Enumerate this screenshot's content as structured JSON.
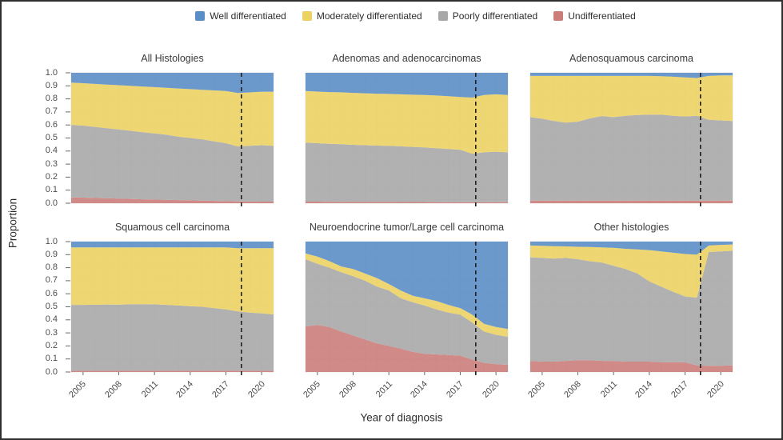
{
  "chart_data": {
    "type": "area",
    "stacked": true,
    "xlabel": "Year of diagnosis",
    "ylabel": "Proportion",
    "x_range": [
      2004,
      2021
    ],
    "ylim": [
      0,
      1
    ],
    "x": [
      2004,
      2005,
      2006,
      2007,
      2008,
      2009,
      2010,
      2011,
      2012,
      2013,
      2014,
      2015,
      2016,
      2017,
      2018,
      2019,
      2020,
      2021
    ],
    "x_ticks": [
      2005,
      2008,
      2011,
      2014,
      2017,
      2020
    ],
    "y_ticks": [
      "0.0",
      "0.1",
      "0.2",
      "0.3",
      "0.4",
      "0.5",
      "0.6",
      "0.7",
      "0.8",
      "0.9",
      "1.0"
    ],
    "reference_line_x": 2018.3,
    "reference_line_style": "dashed",
    "grid": true,
    "legend_position": "top",
    "colors": {
      "well_differentiated": "#5b8ec6",
      "moderately_differentiated": "#ecd163",
      "poorly_differentiated": "#a8a8a8",
      "undifferentiated": "#cb7d7a",
      "reference_line": "#1f1f1f",
      "gridline": "#e7e7e7"
    },
    "legend": [
      {
        "key": "well_differentiated",
        "label": "Well differentiated"
      },
      {
        "key": "moderately_differentiated",
        "label": "Moderately differentiated"
      },
      {
        "key": "poorly_differentiated",
        "label": "Poorly differentiated"
      },
      {
        "key": "undifferentiated",
        "label": "Undifferentiated"
      }
    ],
    "stack_order": [
      "undifferentiated",
      "poorly_differentiated",
      "moderately_differentiated",
      "well_differentiated"
    ],
    "facets": [
      {
        "title": "All Histologies",
        "series": {
          "undifferentiated": [
            0.045,
            0.043,
            0.04,
            0.038,
            0.035,
            0.033,
            0.03,
            0.028,
            0.026,
            0.024,
            0.022,
            0.02,
            0.018,
            0.016,
            0.014,
            0.013,
            0.012,
            0.012
          ],
          "poorly_differentiated": [
            0.555,
            0.552,
            0.545,
            0.537,
            0.53,
            0.522,
            0.515,
            0.507,
            0.499,
            0.486,
            0.478,
            0.47,
            0.457,
            0.444,
            0.421,
            0.427,
            0.433,
            0.428
          ],
          "moderately_differentiated": [
            0.325,
            0.325,
            0.33,
            0.335,
            0.34,
            0.345,
            0.35,
            0.355,
            0.36,
            0.37,
            0.375,
            0.38,
            0.39,
            0.4,
            0.41,
            0.41,
            0.41,
            0.415
          ],
          "well_differentiated": [
            0.075,
            0.08,
            0.085,
            0.09,
            0.095,
            0.1,
            0.105,
            0.11,
            0.115,
            0.12,
            0.125,
            0.13,
            0.135,
            0.14,
            0.155,
            0.15,
            0.145,
            0.145
          ]
        }
      },
      {
        "title": "Adenomas and adenocarcinomas",
        "series": {
          "undifferentiated": [
            0.012,
            0.012,
            0.011,
            0.011,
            0.01,
            0.01,
            0.01,
            0.01,
            0.009,
            0.009,
            0.009,
            0.008,
            0.008,
            0.008,
            0.008,
            0.008,
            0.008,
            0.008
          ],
          "poorly_differentiated": [
            0.453,
            0.448,
            0.444,
            0.441,
            0.438,
            0.435,
            0.432,
            0.43,
            0.427,
            0.423,
            0.419,
            0.414,
            0.408,
            0.402,
            0.372,
            0.382,
            0.387,
            0.382
          ],
          "moderately_differentiated": [
            0.395,
            0.396,
            0.397,
            0.398,
            0.398,
            0.398,
            0.398,
            0.398,
            0.399,
            0.4,
            0.402,
            0.404,
            0.404,
            0.405,
            0.43,
            0.44,
            0.44,
            0.44
          ],
          "well_differentiated": [
            0.14,
            0.144,
            0.148,
            0.15,
            0.154,
            0.157,
            0.16,
            0.162,
            0.165,
            0.168,
            0.17,
            0.174,
            0.18,
            0.185,
            0.19,
            0.17,
            0.165,
            0.17
          ]
        }
      },
      {
        "title": "Adenosquamous carcinoma",
        "series": {
          "undifferentiated": [
            0.02,
            0.02,
            0.02,
            0.02,
            0.02,
            0.02,
            0.02,
            0.02,
            0.02,
            0.02,
            0.02,
            0.02,
            0.02,
            0.02,
            0.02,
            0.02,
            0.02,
            0.02
          ],
          "poorly_differentiated": [
            0.64,
            0.628,
            0.61,
            0.598,
            0.605,
            0.63,
            0.648,
            0.64,
            0.65,
            0.656,
            0.66,
            0.66,
            0.65,
            0.645,
            0.65,
            0.62,
            0.615,
            0.61
          ],
          "moderately_differentiated": [
            0.316,
            0.328,
            0.346,
            0.358,
            0.351,
            0.326,
            0.308,
            0.316,
            0.306,
            0.3,
            0.296,
            0.294,
            0.3,
            0.3,
            0.29,
            0.336,
            0.345,
            0.35
          ],
          "well_differentiated": [
            0.024,
            0.024,
            0.024,
            0.024,
            0.024,
            0.024,
            0.024,
            0.024,
            0.024,
            0.024,
            0.024,
            0.026,
            0.03,
            0.035,
            0.04,
            0.024,
            0.02,
            0.02
          ]
        }
      },
      {
        "title": "Squamous cell carcinoma",
        "series": {
          "undifferentiated": [
            0.01,
            0.01,
            0.01,
            0.01,
            0.01,
            0.01,
            0.01,
            0.01,
            0.01,
            0.01,
            0.01,
            0.01,
            0.01,
            0.01,
            0.01,
            0.01,
            0.01,
            0.01
          ],
          "poorly_differentiated": [
            0.505,
            0.505,
            0.506,
            0.508,
            0.506,
            0.51,
            0.51,
            0.509,
            0.505,
            0.5,
            0.495,
            0.49,
            0.48,
            0.47,
            0.455,
            0.445,
            0.44,
            0.432
          ],
          "moderately_differentiated": [
            0.44,
            0.44,
            0.439,
            0.437,
            0.439,
            0.435,
            0.435,
            0.436,
            0.44,
            0.445,
            0.45,
            0.455,
            0.465,
            0.475,
            0.485,
            0.495,
            0.5,
            0.508
          ],
          "well_differentiated": [
            0.045,
            0.045,
            0.045,
            0.045,
            0.045,
            0.045,
            0.045,
            0.045,
            0.045,
            0.045,
            0.045,
            0.045,
            0.045,
            0.045,
            0.05,
            0.05,
            0.05,
            0.05
          ]
        }
      },
      {
        "title": "Neuroendocrine tumor/Large cell carcinoma",
        "series": {
          "undifferentiated": [
            0.35,
            0.36,
            0.345,
            0.31,
            0.28,
            0.25,
            0.22,
            0.2,
            0.18,
            0.155,
            0.14,
            0.135,
            0.13,
            0.125,
            0.095,
            0.07,
            0.06,
            0.055
          ],
          "poorly_differentiated": [
            0.515,
            0.47,
            0.455,
            0.455,
            0.455,
            0.45,
            0.435,
            0.425,
            0.385,
            0.38,
            0.37,
            0.345,
            0.325,
            0.315,
            0.285,
            0.24,
            0.225,
            0.215
          ],
          "moderately_differentiated": [
            0.045,
            0.055,
            0.05,
            0.045,
            0.055,
            0.055,
            0.065,
            0.05,
            0.06,
            0.05,
            0.055,
            0.065,
            0.06,
            0.05,
            0.06,
            0.06,
            0.06,
            0.06
          ],
          "well_differentiated": [
            0.09,
            0.115,
            0.15,
            0.19,
            0.21,
            0.245,
            0.28,
            0.325,
            0.375,
            0.415,
            0.435,
            0.455,
            0.485,
            0.51,
            0.56,
            0.63,
            0.655,
            0.67
          ]
        }
      },
      {
        "title": "Other histologies",
        "series": {
          "undifferentiated": [
            0.085,
            0.08,
            0.08,
            0.085,
            0.09,
            0.09,
            0.085,
            0.085,
            0.08,
            0.08,
            0.08,
            0.075,
            0.075,
            0.075,
            0.05,
            0.048,
            0.048,
            0.05
          ],
          "poorly_differentiated": [
            0.795,
            0.795,
            0.79,
            0.79,
            0.775,
            0.76,
            0.755,
            0.73,
            0.71,
            0.675,
            0.615,
            0.58,
            0.54,
            0.505,
            0.52,
            0.872,
            0.877,
            0.88
          ],
          "moderately_differentiated": [
            0.09,
            0.093,
            0.095,
            0.088,
            0.095,
            0.108,
            0.115,
            0.137,
            0.155,
            0.185,
            0.24,
            0.27,
            0.3,
            0.325,
            0.33,
            0.05,
            0.05,
            0.048
          ],
          "well_differentiated": [
            0.03,
            0.032,
            0.035,
            0.037,
            0.04,
            0.042,
            0.045,
            0.048,
            0.055,
            0.06,
            0.065,
            0.075,
            0.085,
            0.095,
            0.1,
            0.03,
            0.025,
            0.022
          ]
        }
      }
    ]
  }
}
